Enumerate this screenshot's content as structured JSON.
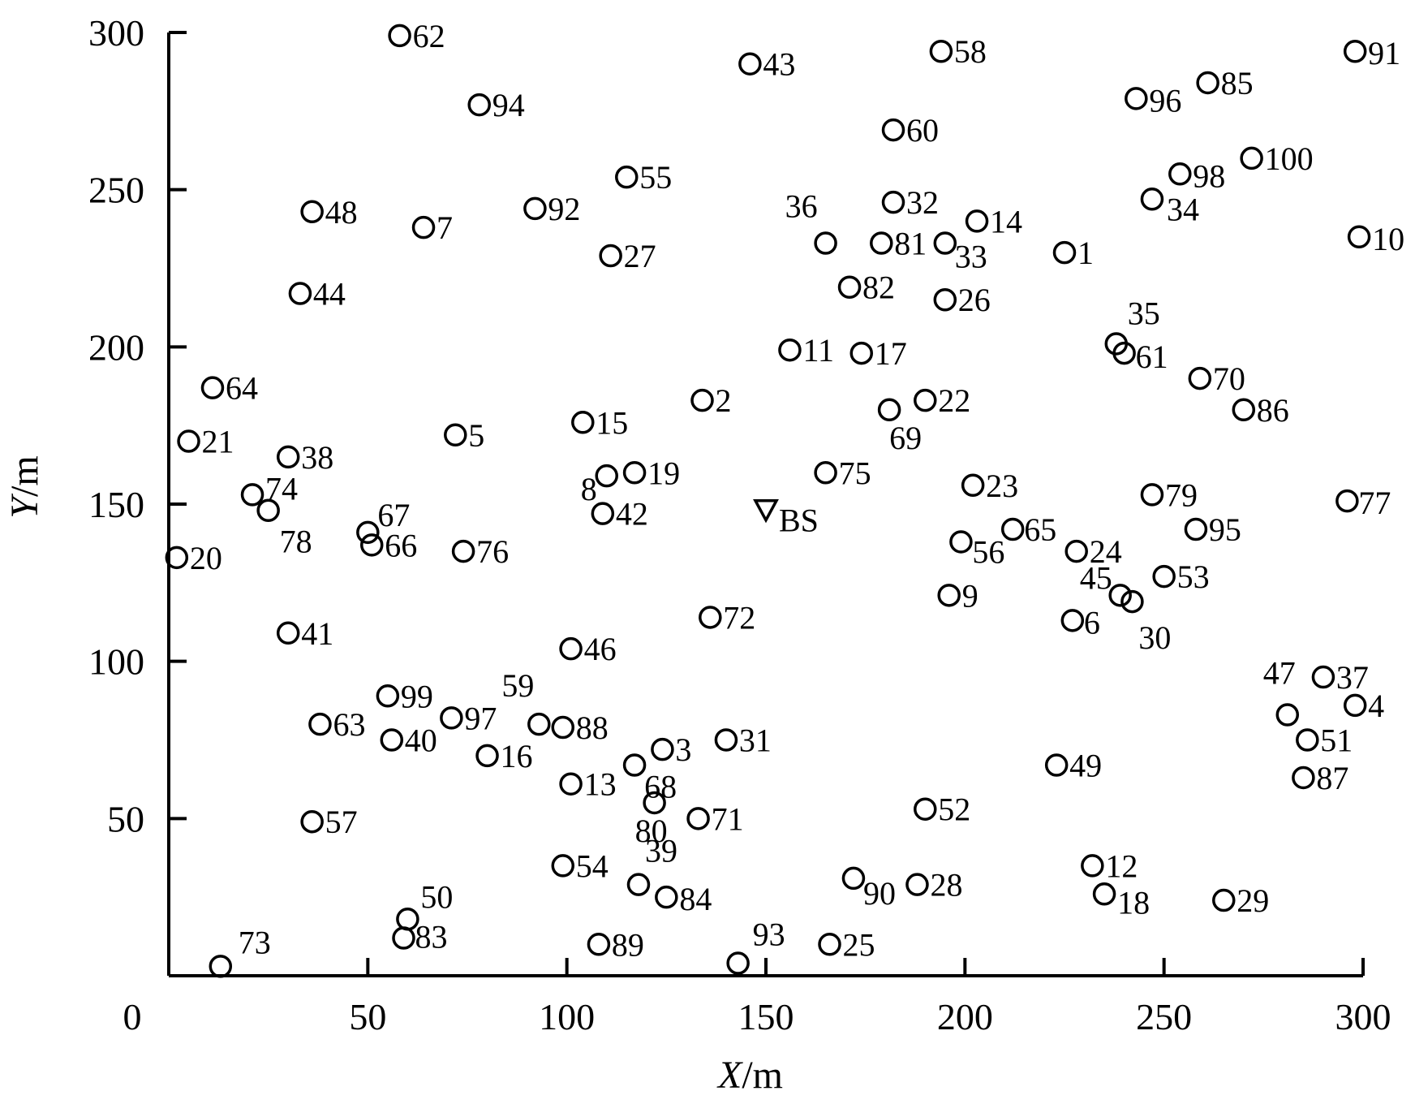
{
  "chart_data": {
    "type": "scatter",
    "title": "",
    "xlabel": {
      "italic": "X",
      "unit": "/m"
    },
    "ylabel": {
      "italic": "Y",
      "unit": "/m"
    },
    "xlim": [
      0,
      300
    ],
    "ylim": [
      0,
      300
    ],
    "xticks": [
      0,
      50,
      100,
      150,
      200,
      250,
      300
    ],
    "yticks": [
      50,
      100,
      150,
      200,
      250,
      300
    ],
    "grid": false,
    "legend": "none",
    "marker_color": "#000000",
    "base_station": {
      "label": "BS",
      "x": 150,
      "y": 148
    },
    "points": [
      {
        "id": "1",
        "x": 225,
        "y": 230
      },
      {
        "id": "2",
        "x": 134,
        "y": 183
      },
      {
        "id": "3",
        "x": 124,
        "y": 72
      },
      {
        "id": "4",
        "x": 298,
        "y": 86
      },
      {
        "id": "5",
        "x": 72,
        "y": 172
      },
      {
        "id": "6",
        "x": 227,
        "y": 113
      },
      {
        "id": "7",
        "x": 64,
        "y": 238
      },
      {
        "id": "8",
        "x": 110,
        "y": 159
      },
      {
        "id": "9",
        "x": 196,
        "y": 121
      },
      {
        "id": "10",
        "x": 299,
        "y": 235
      },
      {
        "id": "11",
        "x": 156,
        "y": 199
      },
      {
        "id": "12",
        "x": 232,
        "y": 35
      },
      {
        "id": "13",
        "x": 101,
        "y": 61
      },
      {
        "id": "14",
        "x": 203,
        "y": 240
      },
      {
        "id": "15",
        "x": 104,
        "y": 176
      },
      {
        "id": "16",
        "x": 80,
        "y": 70
      },
      {
        "id": "17",
        "x": 174,
        "y": 198
      },
      {
        "id": "18",
        "x": 235,
        "y": 26
      },
      {
        "id": "19",
        "x": 117,
        "y": 160
      },
      {
        "id": "20",
        "x": 2,
        "y": 133
      },
      {
        "id": "21",
        "x": 5,
        "y": 170
      },
      {
        "id": "22",
        "x": 190,
        "y": 183
      },
      {
        "id": "23",
        "x": 202,
        "y": 156
      },
      {
        "id": "24",
        "x": 228,
        "y": 135
      },
      {
        "id": "25",
        "x": 166,
        "y": 10
      },
      {
        "id": "26",
        "x": 195,
        "y": 215
      },
      {
        "id": "27",
        "x": 111,
        "y": 229
      },
      {
        "id": "28",
        "x": 188,
        "y": 29
      },
      {
        "id": "29",
        "x": 265,
        "y": 24
      },
      {
        "id": "30",
        "x": 242,
        "y": 119
      },
      {
        "id": "31",
        "x": 140,
        "y": 75
      },
      {
        "id": "32",
        "x": 182,
        "y": 246
      },
      {
        "id": "33",
        "x": 195,
        "y": 233
      },
      {
        "id": "34",
        "x": 247,
        "y": 247
      },
      {
        "id": "35",
        "x": 238,
        "y": 201
      },
      {
        "id": "36",
        "x": 165,
        "y": 233
      },
      {
        "id": "37",
        "x": 290,
        "y": 95
      },
      {
        "id": "38",
        "x": 30,
        "y": 165
      },
      {
        "id": "39",
        "x": 118,
        "y": 29
      },
      {
        "id": "40",
        "x": 56,
        "y": 75
      },
      {
        "id": "41",
        "x": 30,
        "y": 109
      },
      {
        "id": "42",
        "x": 109,
        "y": 147
      },
      {
        "id": "43",
        "x": 146,
        "y": 290
      },
      {
        "id": "44",
        "x": 33,
        "y": 217
      },
      {
        "id": "45",
        "x": 239,
        "y": 121
      },
      {
        "id": "46",
        "x": 101,
        "y": 104
      },
      {
        "id": "47",
        "x": 281,
        "y": 83
      },
      {
        "id": "48",
        "x": 36,
        "y": 243
      },
      {
        "id": "49",
        "x": 223,
        "y": 67
      },
      {
        "id": "50",
        "x": 60,
        "y": 18
      },
      {
        "id": "51",
        "x": 286,
        "y": 75
      },
      {
        "id": "52",
        "x": 190,
        "y": 53
      },
      {
        "id": "53",
        "x": 250,
        "y": 127
      },
      {
        "id": "54",
        "x": 99,
        "y": 35
      },
      {
        "id": "55",
        "x": 115,
        "y": 254
      },
      {
        "id": "56",
        "x": 199,
        "y": 138
      },
      {
        "id": "57",
        "x": 36,
        "y": 49
      },
      {
        "id": "58",
        "x": 194,
        "y": 294
      },
      {
        "id": "59",
        "x": 93,
        "y": 80
      },
      {
        "id": "60",
        "x": 182,
        "y": 269
      },
      {
        "id": "61",
        "x": 240,
        "y": 198
      },
      {
        "id": "62",
        "x": 58,
        "y": 299
      },
      {
        "id": "63",
        "x": 38,
        "y": 80
      },
      {
        "id": "64",
        "x": 11,
        "y": 187
      },
      {
        "id": "65",
        "x": 212,
        "y": 142
      },
      {
        "id": "66",
        "x": 51,
        "y": 137
      },
      {
        "id": "67",
        "x": 50,
        "y": 141
      },
      {
        "id": "68",
        "x": 117,
        "y": 67
      },
      {
        "id": "69",
        "x": 181,
        "y": 180
      },
      {
        "id": "70",
        "x": 259,
        "y": 190
      },
      {
        "id": "71",
        "x": 133,
        "y": 50
      },
      {
        "id": "72",
        "x": 136,
        "y": 114
      },
      {
        "id": "73",
        "x": 13,
        "y": 3
      },
      {
        "id": "74",
        "x": 21,
        "y": 153
      },
      {
        "id": "75",
        "x": 165,
        "y": 160
      },
      {
        "id": "76",
        "x": 74,
        "y": 135
      },
      {
        "id": "77",
        "x": 296,
        "y": 151
      },
      {
        "id": "78",
        "x": 25,
        "y": 148
      },
      {
        "id": "79",
        "x": 247,
        "y": 153
      },
      {
        "id": "80",
        "x": 122,
        "y": 55
      },
      {
        "id": "81",
        "x": 179,
        "y": 233
      },
      {
        "id": "82",
        "x": 171,
        "y": 219
      },
      {
        "id": "83",
        "x": 59,
        "y": 12
      },
      {
        "id": "84",
        "x": 125,
        "y": 25
      },
      {
        "id": "85",
        "x": 261,
        "y": 284
      },
      {
        "id": "86",
        "x": 270,
        "y": 180
      },
      {
        "id": "87",
        "x": 285,
        "y": 63
      },
      {
        "id": "88",
        "x": 99,
        "y": 79
      },
      {
        "id": "89",
        "x": 108,
        "y": 10
      },
      {
        "id": "90",
        "x": 172,
        "y": 31
      },
      {
        "id": "91",
        "x": 298,
        "y": 294
      },
      {
        "id": "92",
        "x": 92,
        "y": 244
      },
      {
        "id": "93",
        "x": 143,
        "y": 4
      },
      {
        "id": "94",
        "x": 78,
        "y": 277
      },
      {
        "id": "95",
        "x": 258,
        "y": 142
      },
      {
        "id": "96",
        "x": 243,
        "y": 279
      },
      {
        "id": "97",
        "x": 71,
        "y": 82
      },
      {
        "id": "98",
        "x": 254,
        "y": 255
      },
      {
        "id": "99",
        "x": 55,
        "y": 89
      },
      {
        "id": "100",
        "x": 272,
        "y": 260
      }
    ]
  }
}
